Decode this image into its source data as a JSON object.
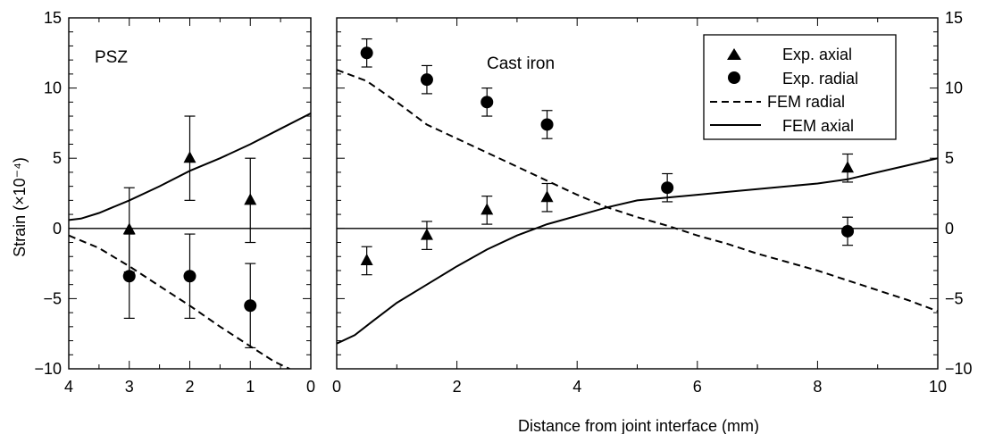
{
  "chart_data": [
    {
      "type": "line",
      "panel_label": "PSZ",
      "ylabel": "Strain (×10⁻⁴)",
      "xlim": [
        4,
        0
      ],
      "ylim": [
        -10,
        15
      ],
      "x_reversed": true,
      "x_ticks": [
        4,
        3,
        2,
        1,
        0
      ],
      "y_ticks": [
        -10,
        -5,
        0,
        5,
        10,
        15
      ],
      "series": [
        {
          "name": "Exp. axial",
          "kind": "points",
          "marker": "triangle",
          "x": [
            3,
            2,
            1
          ],
          "y": [
            -0.1,
            5.0,
            2.0
          ],
          "yerr": [
            3.0,
            3.0,
            3.0
          ]
        },
        {
          "name": "Exp. radial",
          "kind": "points",
          "marker": "circle",
          "x": [
            3,
            2,
            1
          ],
          "y": [
            -3.4,
            -3.4,
            -5.5
          ],
          "yerr": [
            3.0,
            3.0,
            3.0
          ]
        },
        {
          "name": "FEM radial",
          "kind": "line",
          "style": "dashed",
          "x": [
            4,
            3.5,
            3,
            2.5,
            2,
            1.5,
            1,
            0.6,
            0.35
          ],
          "y": [
            -0.5,
            -1.4,
            -2.7,
            -4.1,
            -5.5,
            -7.0,
            -8.4,
            -9.5,
            -10.0
          ]
        },
        {
          "name": "FEM axial",
          "kind": "line",
          "style": "solid",
          "x": [
            4,
            3.8,
            3.5,
            3,
            2.5,
            2,
            1.5,
            1,
            0.5,
            0
          ],
          "y": [
            0.6,
            0.7,
            1.1,
            2.0,
            3.0,
            4.1,
            5.0,
            6.0,
            7.1,
            8.2
          ]
        }
      ]
    },
    {
      "type": "line",
      "panel_label": "Cast iron",
      "xlabel": "Distance from joint interface (mm)",
      "xlim": [
        0,
        10
      ],
      "ylim": [
        -10,
        15
      ],
      "x_ticks": [
        0,
        2,
        4,
        6,
        8,
        10
      ],
      "y_ticks": [
        -10,
        -5,
        0,
        5,
        10,
        15
      ],
      "legend_position": "top-right",
      "series": [
        {
          "name": "Exp. axial",
          "kind": "points",
          "marker": "triangle",
          "x": [
            0.5,
            1.5,
            2.5,
            3.5,
            8.5
          ],
          "y": [
            -2.3,
            -0.5,
            1.3,
            2.2,
            4.3
          ],
          "yerr": [
            1.0,
            1.0,
            1.0,
            1.0,
            1.0
          ]
        },
        {
          "name": "Exp. radial",
          "kind": "points",
          "marker": "circle",
          "x": [
            0.5,
            1.5,
            2.5,
            3.5,
            5.5,
            8.5
          ],
          "y": [
            12.5,
            10.6,
            9.0,
            7.4,
            2.9,
            -0.2
          ],
          "yerr": [
            1.0,
            1.0,
            1.0,
            1.0,
            1.0,
            1.0
          ]
        },
        {
          "name": "FEM radial",
          "kind": "line",
          "style": "dashed",
          "x": [
            0,
            0.5,
            1,
            1.5,
            2,
            2.5,
            3,
            3.5,
            4,
            4.5,
            5,
            5.5,
            6,
            6.5,
            7,
            7.5,
            8,
            8.5,
            9,
            9.5,
            10
          ],
          "y": [
            11.3,
            10.5,
            9.0,
            7.4,
            6.4,
            5.4,
            4.4,
            3.4,
            2.4,
            1.5,
            0.8,
            0.2,
            -0.5,
            -1.1,
            -1.8,
            -2.4,
            -3.0,
            -3.7,
            -4.4,
            -5.1,
            -5.9
          ]
        },
        {
          "name": "FEM axial",
          "kind": "line",
          "style": "solid",
          "x": [
            0,
            0.3,
            0.6,
            1,
            1.5,
            2,
            2.5,
            3,
            3.5,
            4,
            4.5,
            5,
            5.5,
            6,
            6.5,
            7,
            7.5,
            8,
            8.5,
            9,
            9.5,
            10
          ],
          "y": [
            -8.2,
            -7.6,
            -6.6,
            -5.3,
            -4.0,
            -2.7,
            -1.5,
            -0.5,
            0.3,
            0.9,
            1.5,
            2.0,
            2.2,
            2.4,
            2.6,
            2.8,
            3.0,
            3.2,
            3.5,
            4.0,
            4.5,
            5.0
          ]
        }
      ]
    }
  ]
}
